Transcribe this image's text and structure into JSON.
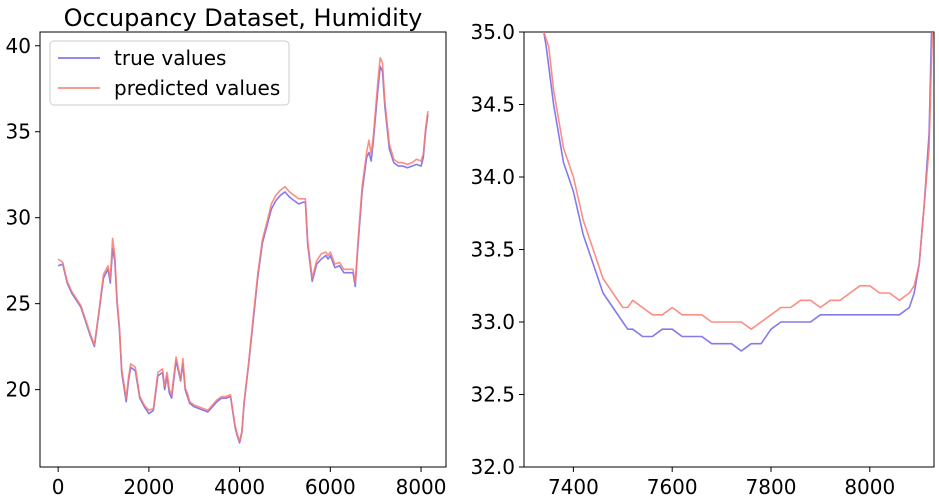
{
  "chart_data": [
    {
      "type": "line",
      "title": "Occupancy Dataset, Humidity",
      "xlabel": "",
      "ylabel": "",
      "xlim": [
        -400,
        8550
      ],
      "ylim": [
        15.5,
        40.8
      ],
      "xticks": [
        0,
        2000,
        4000,
        6000,
        8000
      ],
      "yticks": [
        20,
        25,
        30,
        35,
        40
      ],
      "xtick_labels": [
        "0",
        "2000",
        "4000",
        "6000",
        "8000"
      ],
      "ytick_labels": [
        "20",
        "25",
        "30",
        "35",
        "40"
      ],
      "legend": {
        "placement": "top-left",
        "entries": [
          "true values",
          "predicted values"
        ]
      },
      "grid": false,
      "series": [
        {
          "name": "true values",
          "color": "#6f63e8",
          "x": [
            0,
            100,
            200,
            300,
            400,
            500,
            600,
            700,
            800,
            900,
            1000,
            1100,
            1150,
            1200,
            1250,
            1300,
            1350,
            1400,
            1500,
            1550,
            1600,
            1700,
            1800,
            1900,
            2000,
            2100,
            2200,
            2300,
            2350,
            2400,
            2450,
            2500,
            2600,
            2700,
            2750,
            2800,
            2850,
            2900,
            3000,
            3100,
            3200,
            3300,
            3400,
            3500,
            3600,
            3700,
            3800,
            3900,
            3950,
            4000,
            4050,
            4100,
            4200,
            4300,
            4400,
            4500,
            4600,
            4700,
            4800,
            4900,
            5000,
            5100,
            5200,
            5300,
            5400,
            5450,
            5500,
            5600,
            5700,
            5800,
            5900,
            5950,
            6000,
            6100,
            6200,
            6300,
            6400,
            6500,
            6550,
            6600,
            6700,
            6800,
            6850,
            6900,
            6950,
            7000,
            7050,
            7100,
            7150,
            7200,
            7300,
            7400,
            7500,
            7600,
            7700,
            7800,
            7900,
            8000,
            8050,
            8100,
            8150
          ],
          "values": [
            27.2,
            27.3,
            26.2,
            25.6,
            25.2,
            24.8,
            24.0,
            23.2,
            22.5,
            24.5,
            26.5,
            27.0,
            26.2,
            28.2,
            27.5,
            25.0,
            23.5,
            21.0,
            19.3,
            20.5,
            21.3,
            21.1,
            19.5,
            19.0,
            18.6,
            18.8,
            20.8,
            21.0,
            20.0,
            20.8,
            19.8,
            19.5,
            21.7,
            20.5,
            21.5,
            20.0,
            19.6,
            19.2,
            19.0,
            18.9,
            18.8,
            18.7,
            19.0,
            19.3,
            19.5,
            19.5,
            19.6,
            17.8,
            17.3,
            16.9,
            17.5,
            19.2,
            21.5,
            24.0,
            26.5,
            28.5,
            29.5,
            30.5,
            31.0,
            31.3,
            31.5,
            31.2,
            31.0,
            30.8,
            30.9,
            30.9,
            28.5,
            26.3,
            27.3,
            27.6,
            27.8,
            27.6,
            27.8,
            27.1,
            27.2,
            26.8,
            26.8,
            26.8,
            26.0,
            28.0,
            31.5,
            33.5,
            33.8,
            33.3,
            34.5,
            36.0,
            37.5,
            38.8,
            38.5,
            36.5,
            34.0,
            33.2,
            33.0,
            33.0,
            32.9,
            33.0,
            33.1,
            33.0,
            33.5,
            35.0,
            36.0
          ]
        },
        {
          "name": "predicted values",
          "color": "#fa7a70",
          "x": [
            0,
            100,
            200,
            300,
            400,
            500,
            600,
            700,
            800,
            900,
            1000,
            1100,
            1150,
            1200,
            1250,
            1300,
            1350,
            1400,
            1500,
            1550,
            1600,
            1700,
            1800,
            1900,
            2000,
            2100,
            2200,
            2300,
            2350,
            2400,
            2450,
            2500,
            2600,
            2700,
            2750,
            2800,
            2850,
            2900,
            3000,
            3100,
            3200,
            3300,
            3400,
            3500,
            3600,
            3700,
            3800,
            3900,
            3950,
            4000,
            4050,
            4100,
            4200,
            4300,
            4400,
            4500,
            4600,
            4700,
            4800,
            4900,
            5000,
            5100,
            5200,
            5300,
            5400,
            5450,
            5500,
            5600,
            5700,
            5800,
            5900,
            5950,
            6000,
            6100,
            6200,
            6300,
            6400,
            6500,
            6550,
            6600,
            6700,
            6800,
            6850,
            6900,
            6950,
            7000,
            7050,
            7100,
            7150,
            7200,
            7300,
            7400,
            7500,
            7600,
            7700,
            7800,
            7900,
            8000,
            8050,
            8100,
            8150
          ],
          "values": [
            27.6,
            27.4,
            26.3,
            25.7,
            25.3,
            24.9,
            24.1,
            23.3,
            22.6,
            24.6,
            26.7,
            27.2,
            26.4,
            28.8,
            27.8,
            25.2,
            23.7,
            21.2,
            19.5,
            20.7,
            21.5,
            21.3,
            19.6,
            19.1,
            18.8,
            18.9,
            21.0,
            21.2,
            20.2,
            21.0,
            20.0,
            19.7,
            21.9,
            20.6,
            21.8,
            20.1,
            19.8,
            19.3,
            19.1,
            19.0,
            18.9,
            18.8,
            19.1,
            19.4,
            19.6,
            19.6,
            19.7,
            17.9,
            17.4,
            17.0,
            17.6,
            19.3,
            21.6,
            24.2,
            26.7,
            28.7,
            29.7,
            30.8,
            31.3,
            31.6,
            31.8,
            31.5,
            31.3,
            31.1,
            31.1,
            31.1,
            28.7,
            26.5,
            27.5,
            27.9,
            28.0,
            27.8,
            28.0,
            27.3,
            27.4,
            27.0,
            27.0,
            27.0,
            26.2,
            28.2,
            31.8,
            33.8,
            34.5,
            33.7,
            34.8,
            36.4,
            38.0,
            39.3,
            39.0,
            36.8,
            34.3,
            33.4,
            33.2,
            33.2,
            33.1,
            33.2,
            33.4,
            33.3,
            33.7,
            35.2,
            36.2
          ]
        }
      ]
    },
    {
      "type": "line",
      "title": "",
      "xlabel": "",
      "ylabel": "",
      "xlim": [
        7300,
        8130
      ],
      "ylim": [
        32.0,
        35.0
      ],
      "xticks": [
        7400,
        7600,
        7800,
        8000
      ],
      "yticks": [
        32.0,
        32.5,
        33.0,
        33.5,
        34.0,
        34.5,
        35.0
      ],
      "xtick_labels": [
        "7400",
        "7600",
        "7800",
        "8000"
      ],
      "ytick_labels": [
        "32.0",
        "32.5",
        "33.0",
        "33.5",
        "34.0",
        "34.5",
        "35.0"
      ],
      "grid": false,
      "series": [
        {
          "name": "true values",
          "color": "#6f63e8",
          "x": [
            7300,
            7340,
            7345,
            7360,
            7380,
            7390,
            7400,
            7420,
            7440,
            7460,
            7480,
            7500,
            7510,
            7520,
            7540,
            7560,
            7580,
            7600,
            7620,
            7640,
            7660,
            7680,
            7700,
            7720,
            7740,
            7760,
            7780,
            7800,
            7820,
            7840,
            7860,
            7880,
            7900,
            7920,
            7940,
            7960,
            7980,
            8000,
            8020,
            8040,
            8060,
            8080,
            8090,
            8100,
            8110,
            8120,
            8125,
            8130
          ],
          "values": [
            35.6,
            35.0,
            34.9,
            34.5,
            34.1,
            34.0,
            33.9,
            33.6,
            33.4,
            33.2,
            33.1,
            33.0,
            32.95,
            32.95,
            32.9,
            32.9,
            32.95,
            32.95,
            32.9,
            32.9,
            32.9,
            32.85,
            32.85,
            32.85,
            32.8,
            32.85,
            32.85,
            32.95,
            33.0,
            33.0,
            33.0,
            33.0,
            33.05,
            33.05,
            33.05,
            33.05,
            33.05,
            33.05,
            33.05,
            33.05,
            33.05,
            33.1,
            33.2,
            33.4,
            33.8,
            34.3,
            35.0,
            35.3
          ]
        },
        {
          "name": "predicted values",
          "color": "#fa7a70",
          "x": [
            7300,
            7340,
            7350,
            7360,
            7380,
            7390,
            7400,
            7420,
            7440,
            7460,
            7480,
            7500,
            7510,
            7520,
            7540,
            7560,
            7580,
            7600,
            7620,
            7640,
            7660,
            7680,
            7700,
            7720,
            7740,
            7760,
            7780,
            7800,
            7820,
            7840,
            7860,
            7880,
            7900,
            7920,
            7940,
            7960,
            7980,
            8000,
            8020,
            8040,
            8060,
            8080,
            8090,
            8100,
            8110,
            8120,
            8125,
            8130
          ],
          "values": [
            35.8,
            35.0,
            34.9,
            34.6,
            34.2,
            34.1,
            34.0,
            33.7,
            33.5,
            33.3,
            33.2,
            33.1,
            33.1,
            33.15,
            33.1,
            33.05,
            33.05,
            33.1,
            33.05,
            33.05,
            33.05,
            33.0,
            33.0,
            33.0,
            33.0,
            32.95,
            33.0,
            33.05,
            33.1,
            33.1,
            33.15,
            33.15,
            33.1,
            33.15,
            33.15,
            33.2,
            33.25,
            33.25,
            33.2,
            33.2,
            33.15,
            33.2,
            33.25,
            33.4,
            33.8,
            34.2,
            34.8,
            35.3
          ]
        }
      ]
    }
  ]
}
